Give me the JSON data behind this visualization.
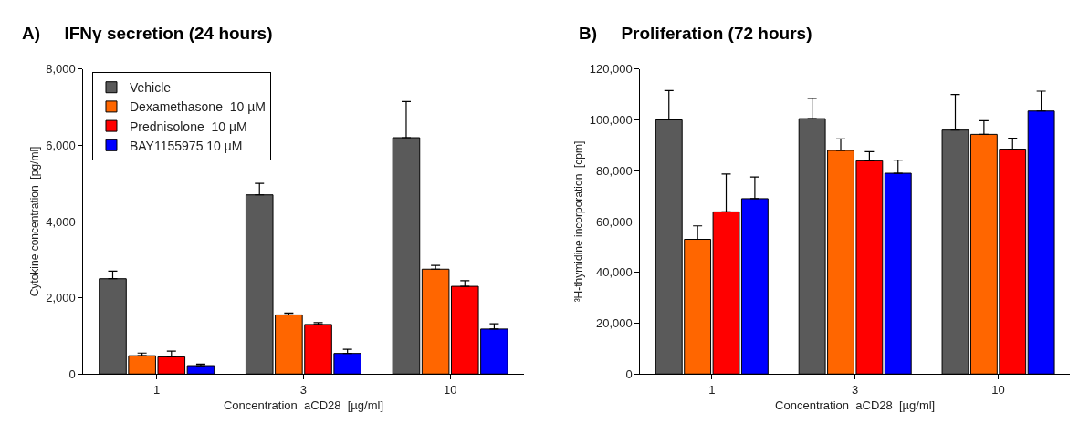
{
  "chart_data": [
    {
      "type": "bar",
      "title": "A)     IFNγ secretion (24 hours)",
      "xlabel": "Concentration  aCD28  [µg/ml]",
      "ylabel": "Cytokine concentration  [pg/ml]",
      "categories": [
        "1",
        "3",
        "10"
      ],
      "ylim": [
        0,
        8000
      ],
      "yticks": [
        {
          "value": 0,
          "label": "0"
        },
        {
          "value": 2000,
          "label": "2,000"
        },
        {
          "value": 4000,
          "label": "4,000"
        },
        {
          "value": 6000,
          "label": "6,000"
        },
        {
          "value": 8000,
          "label": "8,000"
        }
      ],
      "legend": "top left",
      "series": [
        {
          "name": "Vehicle",
          "color": "#5a5a5a",
          "values": [
            2500,
            4700,
            6200
          ],
          "errors": [
            [
              2500,
              2700
            ],
            [
              4700,
              5000
            ],
            [
              6200,
              7150
            ]
          ]
        },
        {
          "name": "Dexamethasone  10 µM",
          "color": "#ff6600",
          "values": [
            480,
            1550,
            2750
          ],
          "errors": [
            [
              480,
              550
            ],
            [
              1550,
              1600
            ],
            [
              2750,
              2850
            ]
          ]
        },
        {
          "name": "Prednisolone  10 µM",
          "color": "#ff0000",
          "values": [
            450,
            1300,
            2300
          ],
          "errors": [
            [
              450,
              600
            ],
            [
              1300,
              1350
            ],
            [
              2300,
              2450
            ]
          ]
        },
        {
          "name": "BAY1155975 10 µM",
          "color": "#0000ff",
          "values": [
            220,
            540,
            1180
          ],
          "errors": [
            [
              220,
              260
            ],
            [
              540,
              650
            ],
            [
              1180,
              1320
            ]
          ]
        }
      ]
    },
    {
      "type": "bar",
      "title": "B)     Proliferation (72 hours)",
      "xlabel": "Concentration  aCD28  [µg/ml]",
      "ylabel": "³H-thymidine incorporation  [cpm]",
      "categories": [
        "1",
        "3",
        "10"
      ],
      "ylim": [
        0,
        120000
      ],
      "yticks": [
        {
          "value": 0,
          "label": "0"
        },
        {
          "value": 20000,
          "label": "20,000"
        },
        {
          "value": 40000,
          "label": "40,000"
        },
        {
          "value": 60000,
          "label": "60,000"
        },
        {
          "value": 80000,
          "label": "80,000"
        },
        {
          "value": 100000,
          "label": "100,000"
        },
        {
          "value": 120000,
          "label": "120,000"
        }
      ],
      "series": [
        {
          "color": "#5a5a5a",
          "values": [
            100000,
            100500,
            96000
          ],
          "errors": [
            [
              100000,
              111500
            ],
            [
              100500,
              108500
            ],
            [
              96000,
              110000
            ]
          ]
        },
        {
          "color": "#ff6600",
          "values": [
            53000,
            88000,
            94300
          ],
          "errors": [
            [
              53000,
              58300
            ],
            [
              88000,
              92500
            ],
            [
              94300,
              99700
            ]
          ]
        },
        {
          "color": "#ff0000",
          "values": [
            63800,
            83900,
            88500
          ],
          "errors": [
            [
              63800,
              78700
            ],
            [
              83900,
              87500
            ],
            [
              88500,
              92800
            ]
          ]
        },
        {
          "color": "#0000ff",
          "values": [
            69000,
            79000,
            103500
          ],
          "errors": [
            [
              69000,
              77500
            ],
            [
              79000,
              84200
            ],
            [
              103500,
              111300
            ]
          ]
        }
      ]
    }
  ]
}
